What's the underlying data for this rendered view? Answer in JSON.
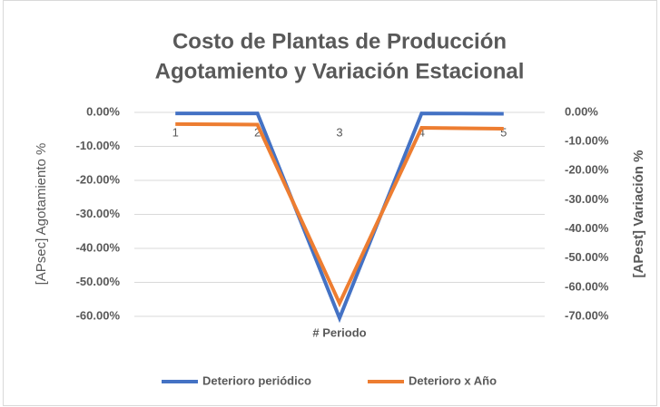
{
  "chart_data": {
    "type": "line",
    "title": "Costo de Plantas de Producción",
    "subtitle": "Agotamiento y Variación Estacional",
    "x_label": "# Periodo",
    "y_label": "[APsec] Agotamiento %",
    "y2_label": "[APest] Variación %",
    "categories": [
      "1",
      "2",
      "3",
      "4",
      "5"
    ],
    "series": [
      {
        "name": "Deterioro periódico",
        "color": "#4472c4",
        "values": [
          -0.3,
          -0.3,
          -60.5,
          -0.3,
          -0.4
        ]
      },
      {
        "name": "Deterioro x Año",
        "color": "#ed7d31",
        "axis": "y2",
        "values": [
          -4.0,
          -4.2,
          -65.5,
          -5.3,
          -5.6
        ]
      }
    ],
    "ylim": [
      -60,
      0
    ],
    "yticks": [
      {
        "value": 0,
        "label": "0.00%"
      },
      {
        "value": -10,
        "label": "-10.00%"
      },
      {
        "value": -20,
        "label": "-20.00%"
      },
      {
        "value": -30,
        "label": "-30.00%"
      },
      {
        "value": -40,
        "label": "-40.00%"
      },
      {
        "value": -50,
        "label": "-50.00%"
      },
      {
        "value": -60,
        "label": "-60.00%"
      }
    ],
    "y2lim": [
      -70,
      0
    ],
    "y2ticks": [
      {
        "value": 0,
        "label": "0.00%"
      },
      {
        "value": -10,
        "label": "-10.00%"
      },
      {
        "value": -20,
        "label": "-20.00%"
      },
      {
        "value": -30,
        "label": "-30.00%"
      },
      {
        "value": -40,
        "label": "-40.00%"
      },
      {
        "value": -50,
        "label": "-50.00%"
      },
      {
        "value": -60,
        "label": "-60.00%"
      },
      {
        "value": -70,
        "label": "-70.00%"
      }
    ],
    "grid": true,
    "legend": "bottom"
  }
}
